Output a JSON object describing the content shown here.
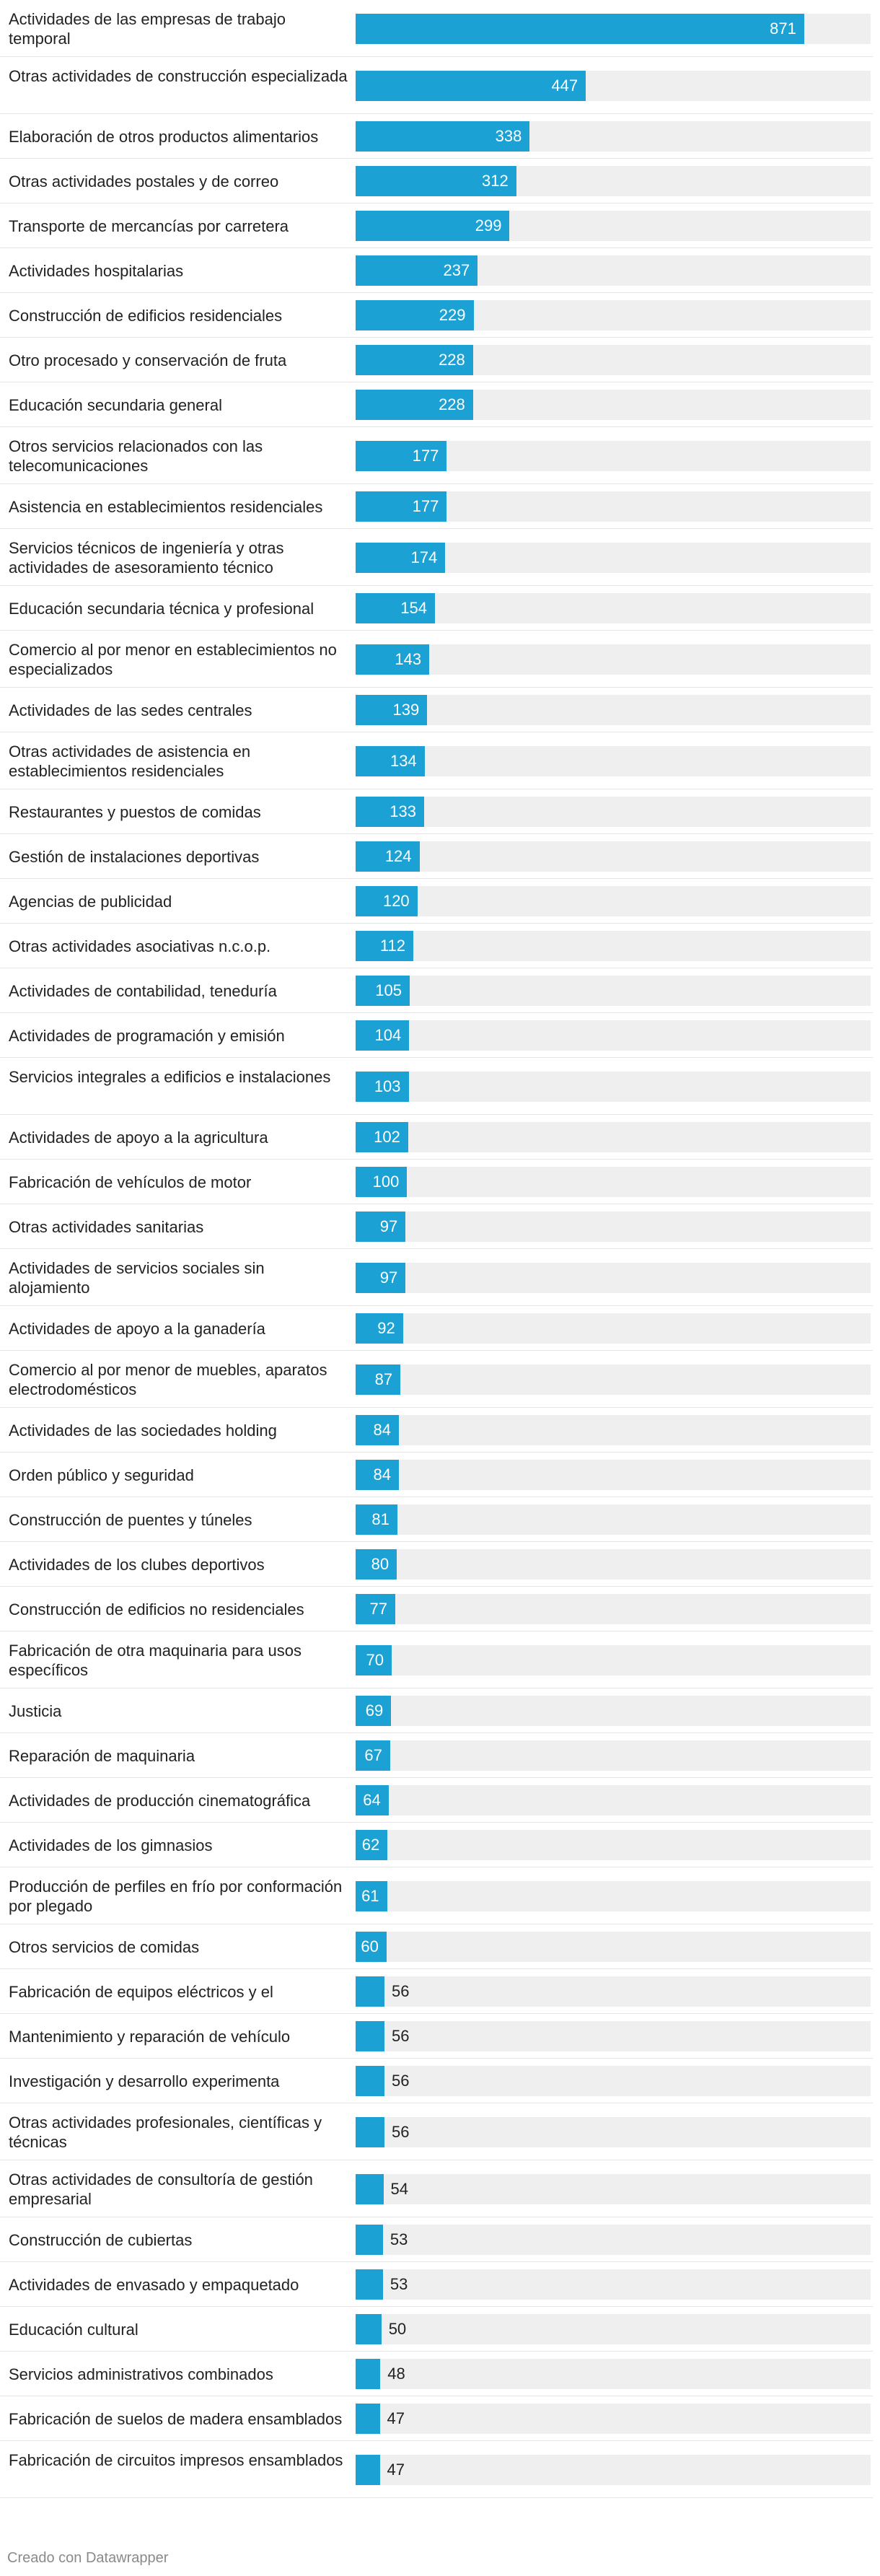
{
  "chart_data": {
    "type": "bar",
    "orientation": "horizontal",
    "bar_color": "#1ba1d4",
    "track_color": "#efefef",
    "xlim": [
      0,
      1000
    ],
    "categories": [
      "Actividades de las empresas de trabajo temporal",
      "Otras actividades de construcción especializada",
      "Elaboración de otros productos alimentarios",
      "Otras actividades postales y de correo",
      "Transporte de mercancías por carretera",
      "Actividades hospitalarias",
      "Construcción de edificios residenciales",
      "Otro procesado y conservación de fruta",
      "Educación secundaria general",
      "Otros servicios relacionados con las telecomunicaciones",
      "Asistencia en establecimientos residenciales",
      "Servicios técnicos de ingeniería y otras actividades de asesoramiento técnico",
      "Educación secundaria técnica y profesional",
      "Comercio al por menor en establecimientos no especializados",
      "Actividades de las sedes centrales",
      "Otras actividades de asistencia en establecimientos residenciales",
      "Restaurantes y puestos de comidas",
      "Gestión de instalaciones deportivas",
      "Agencias de publicidad",
      "Otras actividades asociativas n.c.o.p.",
      "Actividades de contabilidad, teneduría",
      "Actividades de programación y emisión",
      "Servicios integrales a edificios e instalaciones",
      "Actividades de apoyo a la agricultura",
      "Fabricación de vehículos de motor",
      "Otras actividades sanitarias",
      "Actividades de servicios sociales sin alojamiento",
      "Actividades de apoyo a la ganadería",
      "Comercio al por menor de muebles, aparatos electrodomésticos",
      "Actividades de las sociedades holding",
      "Orden público y seguridad",
      "Construcción de puentes y túneles",
      "Actividades de los clubes deportivos",
      "Construcción de edificios no residenciales",
      "Fabricación de otra maquinaria para usos específicos",
      "Justicia",
      "Reparación de maquinaria",
      "Actividades de producción cinematográfica",
      "Actividades de los gimnasios",
      "Producción de perfiles en frío por conformación por plegado",
      "Otros servicios de comidas",
      "Fabricación de equipos eléctricos y el",
      "Mantenimiento y reparación de vehículo",
      "Investigación y desarrollo experimenta",
      "Otras actividades profesionales, científicas y técnicas",
      "Otras actividades de consultoría de gestión empresarial",
      "Construcción de cubiertas",
      "Actividades de envasado y empaquetado",
      "Educación cultural",
      "Servicios administrativos combinados",
      "Fabricación de suelos de madera ensamblados",
      "Fabricación de circuitos impresos ensamblados"
    ],
    "values": [
      871,
      447,
      338,
      312,
      299,
      237,
      229,
      228,
      228,
      177,
      177,
      174,
      154,
      143,
      139,
      134,
      133,
      124,
      120,
      112,
      105,
      104,
      103,
      102,
      100,
      97,
      97,
      92,
      87,
      84,
      84,
      81,
      80,
      77,
      70,
      69,
      67,
      64,
      62,
      61,
      60,
      56,
      56,
      56,
      56,
      54,
      53,
      53,
      50,
      48,
      47,
      47
    ]
  },
  "footer": {
    "credit": "Creado con Datawrapper"
  }
}
